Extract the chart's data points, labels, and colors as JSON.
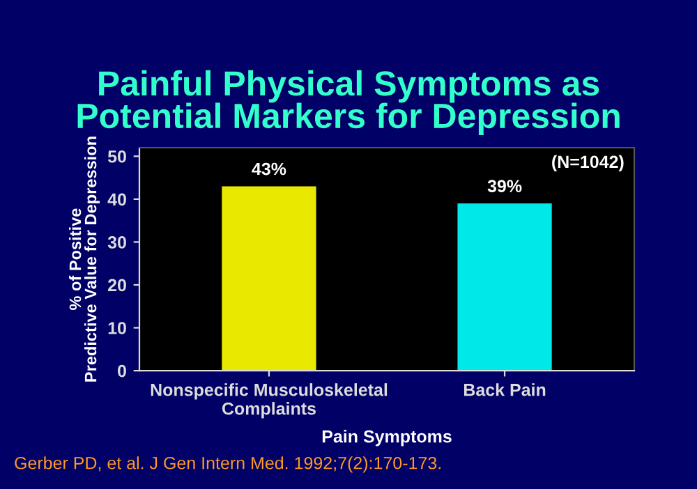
{
  "chart_data": {
    "type": "bar",
    "title": "Painful Physical Symptoms as\nPotential Markers for Depression",
    "xlabel": "Pain Symptoms",
    "ylabel": "% of Positive\nPredictive Value for Depression",
    "categories": [
      "Nonspecific Musculoskeletal\nComplaints",
      "Back Pain"
    ],
    "values": [
      43,
      39
    ],
    "colors": [
      "#e8e800",
      "#00e8e8"
    ],
    "value_labels": [
      "43%",
      "39%"
    ],
    "ylim": [
      0,
      52
    ],
    "yticks": [
      0,
      10,
      20,
      30,
      40,
      50
    ],
    "grid": false,
    "legend": false,
    "annotations": [
      "(N=1042)",
      "Gerber PD, et al. J Gen Intern Med. 1992;7(2):170-173."
    ]
  }
}
